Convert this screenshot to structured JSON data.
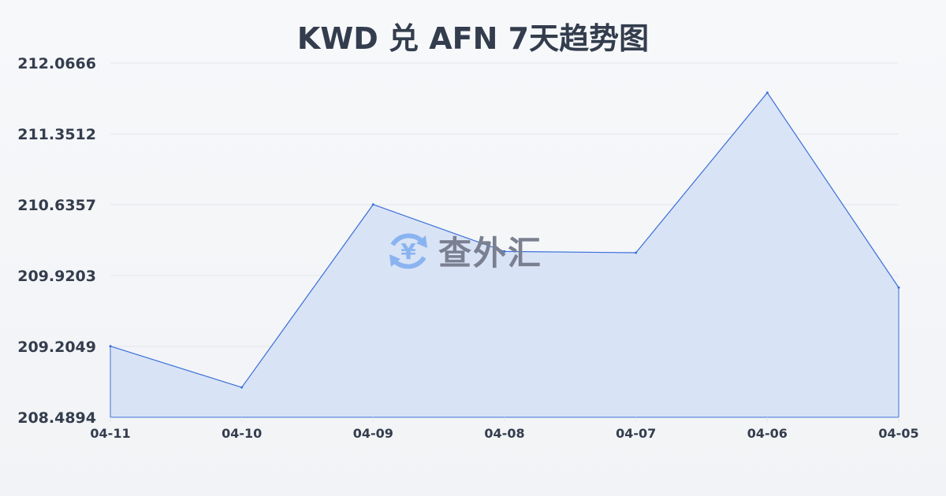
{
  "title": "KWD 兑 AFN 7天趋势图",
  "watermark": {
    "text": "查外汇",
    "icon": "yen-exchange-icon",
    "icon_color": "#8ab4f0"
  },
  "chart_data": {
    "type": "area",
    "title": "KWD 兑 AFN 7天趋势图",
    "categories": [
      "04-11",
      "04-10",
      "04-09",
      "04-08",
      "04-07",
      "04-06",
      "04-05"
    ],
    "series": [
      {
        "values": [
          209.207,
          208.791,
          210.638,
          210.164,
          210.151,
          211.767,
          209.799
        ]
      }
    ],
    "yticks": [
      "208.4894",
      "209.2049",
      "209.9203",
      "210.6357",
      "211.3512",
      "212.0666"
    ],
    "ylim": [
      208.4894,
      212.0666
    ],
    "grid": true,
    "colors": {
      "line": "#3a6fd8",
      "fill": "#d6e1f5",
      "grid": "#e3e6eb"
    }
  }
}
